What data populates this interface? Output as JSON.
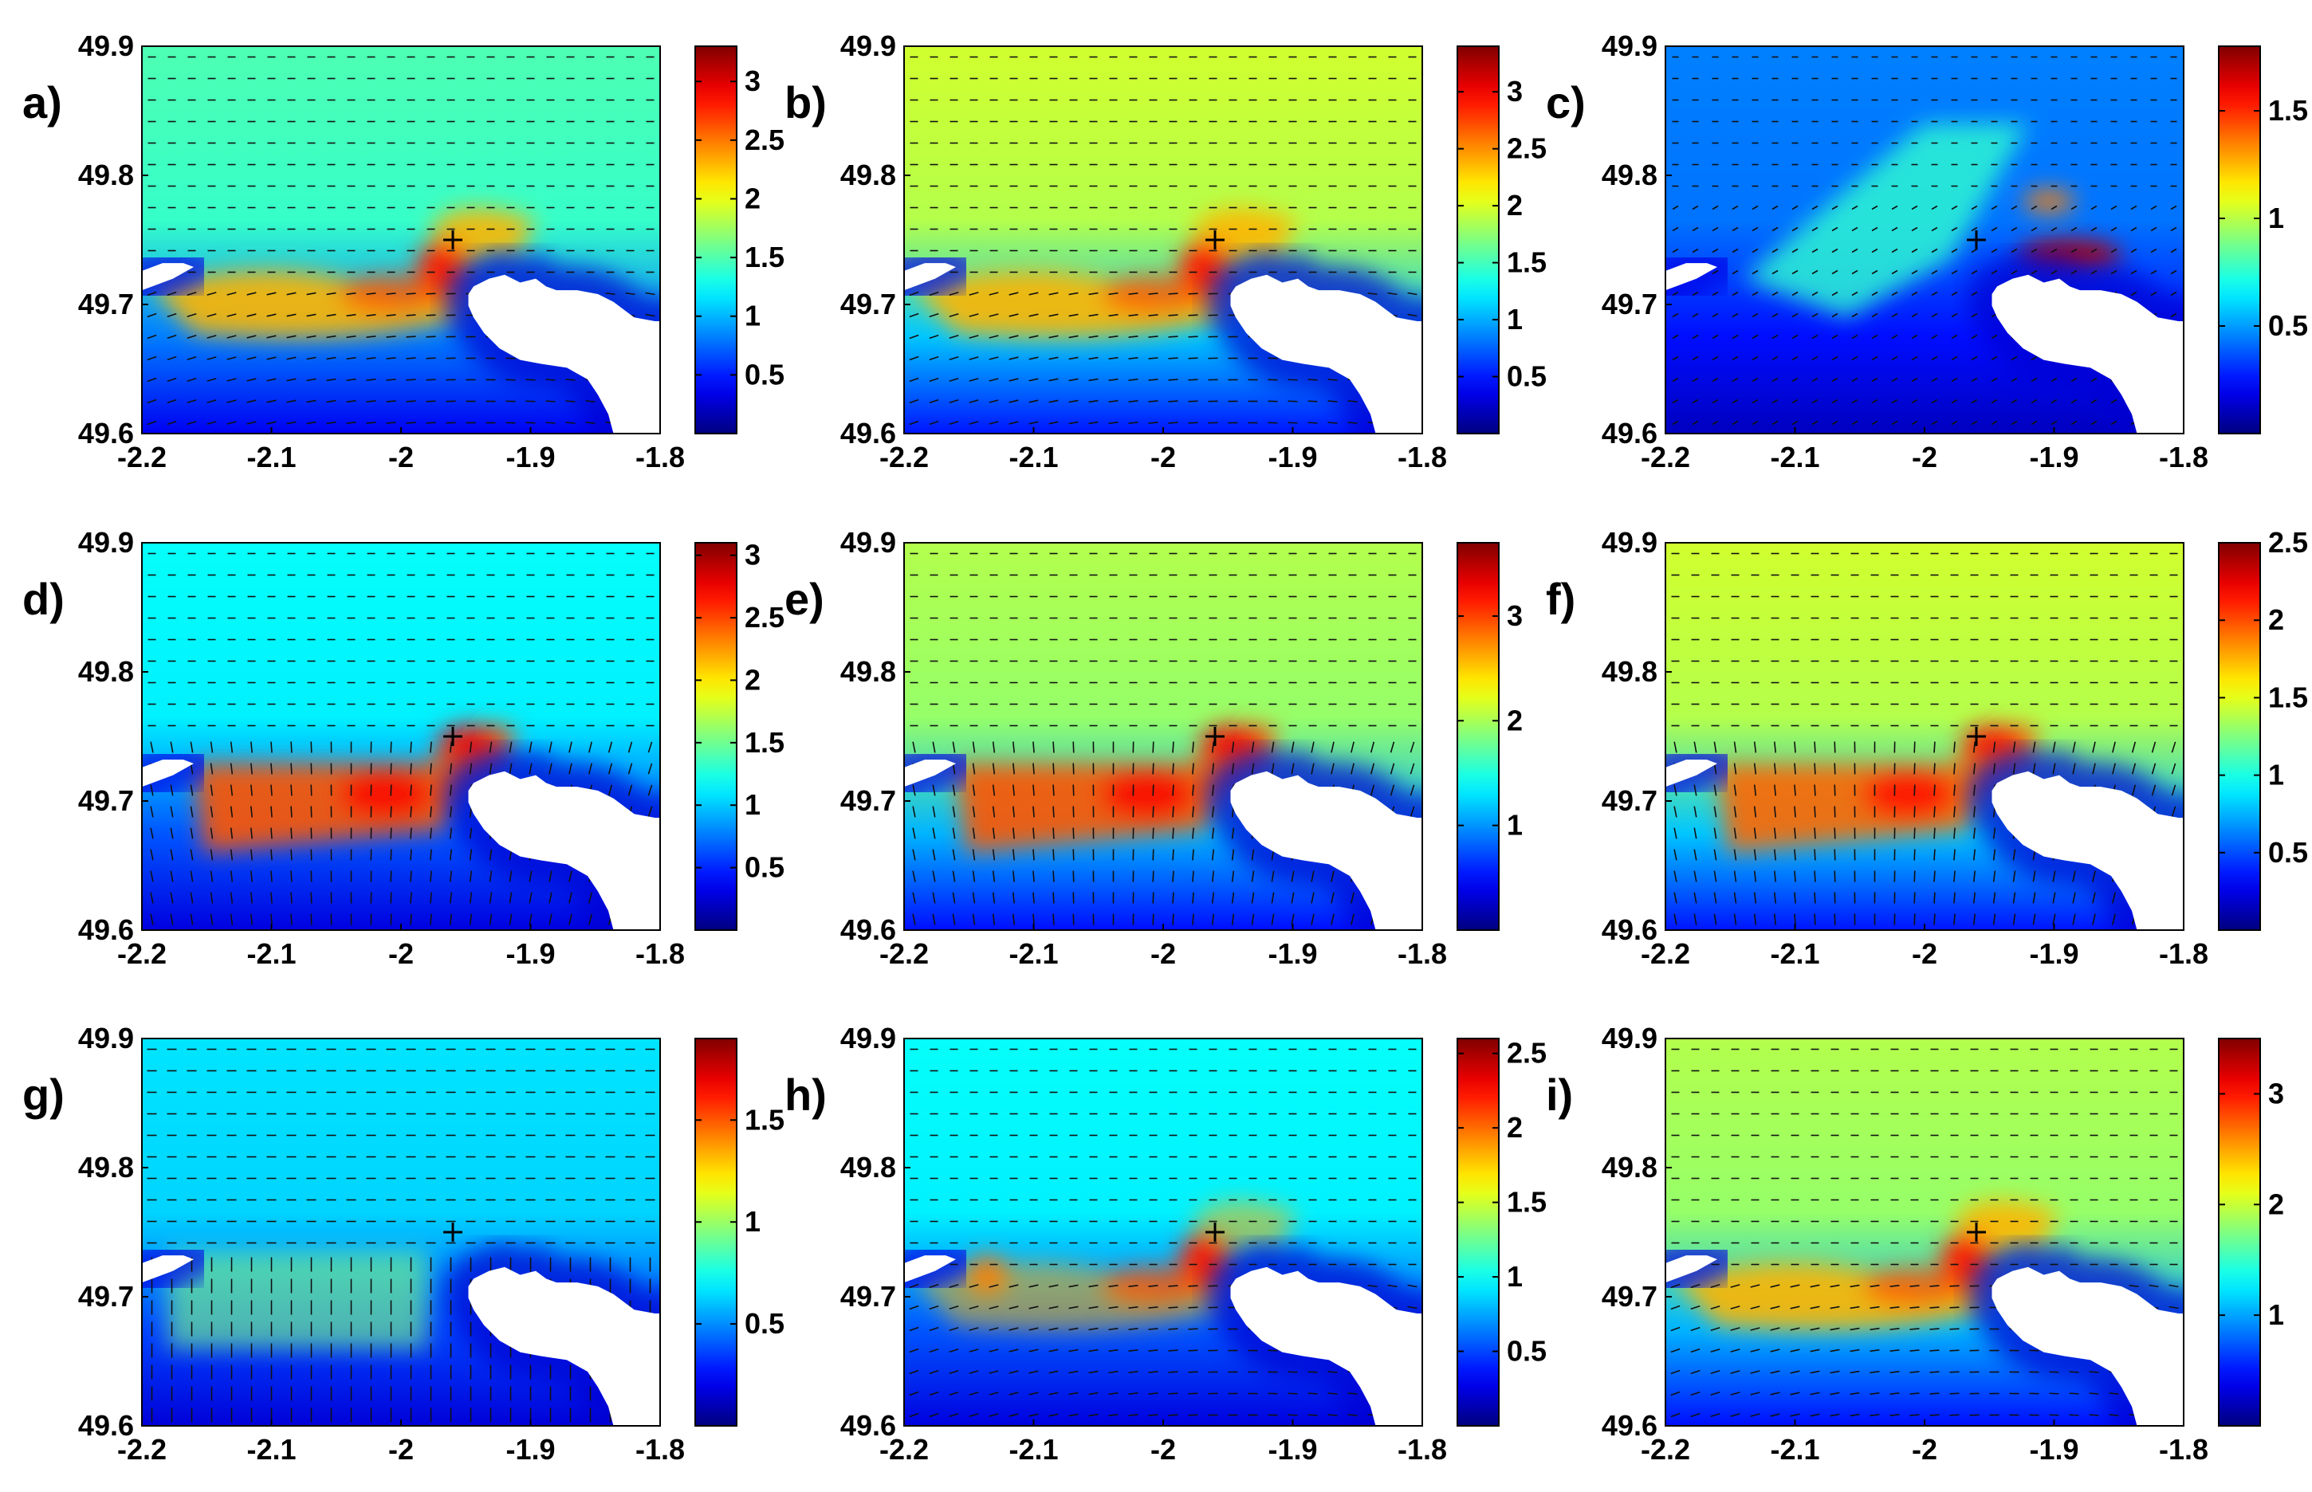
{
  "figure": {
    "panel_labels": [
      "a)",
      "b)",
      "c)",
      "d)",
      "e)",
      "f)",
      "g)",
      "h)",
      "i)"
    ]
  },
  "chart_data": [
    {
      "id": "a",
      "type": "heatmap",
      "label": "a)",
      "xlim": [
        -2.2,
        -1.8
      ],
      "ylim": [
        49.6,
        49.9
      ],
      "x_ticks": [
        "-2.2",
        "-2.1",
        "-2",
        "-1.9",
        "-1.8"
      ],
      "y_ticks": [
        "49.6",
        "49.7",
        "49.8",
        "49.9"
      ],
      "colorbar": {
        "min": 0,
        "max": 3.3,
        "ticks": [
          "0.5",
          "1",
          "1.5",
          "2",
          "2.5",
          "3"
        ]
      },
      "marker": {
        "x": -1.96,
        "y": 49.75
      },
      "pattern": "flood",
      "base_level": 0.45,
      "jet_level": 0.85,
      "west_blob": 0
    },
    {
      "id": "b",
      "type": "heatmap",
      "label": "b)",
      "xlim": [
        -2.2,
        -1.8
      ],
      "ylim": [
        49.6,
        49.9
      ],
      "x_ticks": [
        "-2.2",
        "-2.1",
        "-2",
        "-1.9",
        "-1.8"
      ],
      "y_ticks": [
        "49.6",
        "49.7",
        "49.8",
        "49.9"
      ],
      "colorbar": {
        "min": 0,
        "max": 3.4,
        "ticks": [
          "0.5",
          "1",
          "1.5",
          "2",
          "2.5",
          "3"
        ]
      },
      "marker": {
        "x": -1.96,
        "y": 49.75
      },
      "pattern": "flood",
      "base_level": 0.58,
      "jet_level": 0.85,
      "west_blob": 0
    },
    {
      "id": "c",
      "type": "heatmap",
      "label": "c)",
      "xlim": [
        -2.2,
        -1.8
      ],
      "ylim": [
        49.6,
        49.9
      ],
      "x_ticks": [
        "-2.2",
        "-2.1",
        "-2",
        "-1.9",
        "-1.8"
      ],
      "y_ticks": [
        "49.6",
        "49.7",
        "49.8",
        "49.9"
      ],
      "colorbar": {
        "min": 0,
        "max": 1.8,
        "ticks": [
          "0.5",
          "1",
          "1.5"
        ]
      },
      "marker": {
        "x": -1.96,
        "y": 49.75
      },
      "pattern": "slack",
      "base_level": 0.25,
      "jet_level": 0.95,
      "west_blob": 0
    },
    {
      "id": "d",
      "type": "heatmap",
      "label": "d)",
      "xlim": [
        -2.2,
        -1.8
      ],
      "ylim": [
        49.6,
        49.9
      ],
      "x_ticks": [
        "-2.2",
        "-2.1",
        "-2",
        "-1.9",
        "-1.8"
      ],
      "y_ticks": [
        "49.6",
        "49.7",
        "49.8",
        "49.9"
      ],
      "colorbar": {
        "min": 0,
        "max": 3.1,
        "ticks": [
          "0.5",
          "1",
          "1.5",
          "2",
          "2.5",
          "3"
        ]
      },
      "marker": {
        "x": -1.96,
        "y": 49.75
      },
      "pattern": "ebb",
      "base_level": 0.38,
      "jet_level": 0.88,
      "west_blob": 0
    },
    {
      "id": "e",
      "type": "heatmap",
      "label": "e)",
      "xlim": [
        -2.2,
        -1.8
      ],
      "ylim": [
        49.6,
        49.9
      ],
      "x_ticks": [
        "-2.2",
        "-2.1",
        "-2",
        "-1.9",
        "-1.8"
      ],
      "y_ticks": [
        "49.6",
        "49.7",
        "49.8",
        "49.9"
      ],
      "colorbar": {
        "min": 0,
        "max": 3.7,
        "ticks": [
          "1",
          "2",
          "3"
        ]
      },
      "marker": {
        "x": -1.96,
        "y": 49.75
      },
      "pattern": "ebb",
      "base_level": 0.55,
      "jet_level": 0.88,
      "west_blob": 0
    },
    {
      "id": "f",
      "type": "heatmap",
      "label": "f)",
      "xlim": [
        -2.2,
        -1.8
      ],
      "ylim": [
        49.6,
        49.9
      ],
      "x_ticks": [
        "-2.2",
        "-2.1",
        "-2",
        "-1.9",
        "-1.8"
      ],
      "y_ticks": [
        "49.6",
        "49.7",
        "49.8",
        "49.9"
      ],
      "colorbar": {
        "min": 0,
        "max": 2.5,
        "ticks": [
          "0.5",
          "1",
          "1.5",
          "2",
          "2.5"
        ]
      },
      "marker": {
        "x": -1.96,
        "y": 49.75
      },
      "pattern": "ebb",
      "base_level": 0.58,
      "jet_level": 0.86,
      "west_blob": 0
    },
    {
      "id": "g",
      "type": "heatmap",
      "label": "g)",
      "xlim": [
        -2.2,
        -1.8
      ],
      "ylim": [
        49.6,
        49.9
      ],
      "x_ticks": [
        "-2.2",
        "-2.1",
        "-2",
        "-1.9",
        "-1.8"
      ],
      "y_ticks": [
        "49.6",
        "49.7",
        "49.8",
        "49.9"
      ],
      "colorbar": {
        "min": 0,
        "max": 1.9,
        "ticks": [
          "0.5",
          "1",
          "1.5"
        ]
      },
      "marker": {
        "x": -1.96,
        "y": 49.75
      },
      "pattern": "weak",
      "base_level": 0.35,
      "jet_level": 0.5,
      "west_blob": 0
    },
    {
      "id": "h",
      "type": "heatmap",
      "label": "h)",
      "xlim": [
        -2.2,
        -1.8
      ],
      "ylim": [
        49.6,
        49.9
      ],
      "x_ticks": [
        "-2.2",
        "-2.1",
        "-2",
        "-1.9",
        "-1.8"
      ],
      "y_ticks": [
        "49.6",
        "49.7",
        "49.8",
        "49.9"
      ],
      "colorbar": {
        "min": 0,
        "max": 2.6,
        "ticks": [
          "0.5",
          "1",
          "1.5",
          "2",
          "2.5"
        ]
      },
      "marker": {
        "x": -1.96,
        "y": 49.75
      },
      "pattern": "flood",
      "base_level": 0.38,
      "jet_level": 0.85,
      "west_blob": 0.75
    },
    {
      "id": "i",
      "type": "heatmap",
      "label": "i)",
      "xlim": [
        -2.2,
        -1.8
      ],
      "ylim": [
        49.6,
        49.9
      ],
      "x_ticks": [
        "-2.2",
        "-2.1",
        "-2",
        "-1.9",
        "-1.8"
      ],
      "y_ticks": [
        "49.6",
        "49.7",
        "49.8",
        "49.9"
      ],
      "colorbar": {
        "min": 0,
        "max": 3.5,
        "ticks": [
          "1",
          "2",
          "3"
        ]
      },
      "marker": {
        "x": -1.96,
        "y": 49.75
      },
      "pattern": "flood",
      "base_level": 0.55,
      "jet_level": 0.85,
      "west_blob": 0
    }
  ]
}
